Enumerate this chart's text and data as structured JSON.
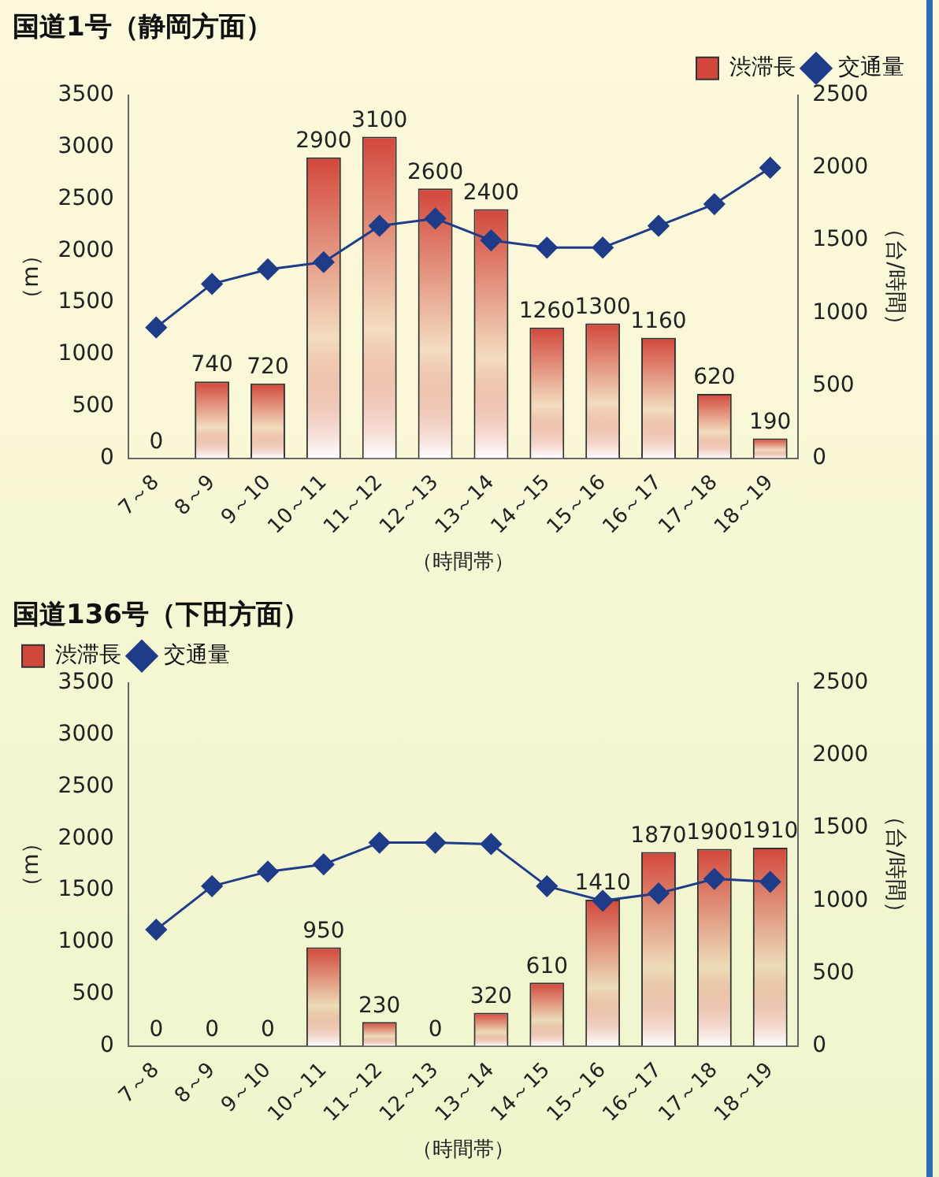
{
  "chart_data": [
    {
      "type": "bar",
      "title": "国道1号（静岡方面）",
      "xlabel": "（時間帯）",
      "ylabel": "（m）",
      "y2label": "（台/時間）",
      "categories": [
        "7～8",
        "8～9",
        "9～10",
        "10～11",
        "11～12",
        "12～13",
        "13～14",
        "14～15",
        "15～16",
        "16～17",
        "17～18",
        "18～19"
      ],
      "series": [
        {
          "name": "渋滞長",
          "color": "#d2473b",
          "values": [
            0,
            740,
            720,
            2900,
            3100,
            2600,
            2400,
            1260,
            1300,
            1160,
            620,
            190
          ],
          "value_labels": [
            "0",
            "740",
            "720",
            "2900",
            "3100",
            "2600",
            "2400",
            "1260",
            "1300",
            "1160",
            "620",
            "190"
          ]
        },
        {
          "name": "交通量",
          "type": "line",
          "axis": "y2",
          "color": "#1f3c88",
          "values": [
            900,
            1200,
            1300,
            1350,
            1600,
            1650,
            1500,
            1450,
            1450,
            1600,
            1750,
            2000
          ]
        }
      ],
      "ylim": [
        0,
        3500
      ],
      "yticks": [
        0,
        500,
        1000,
        1500,
        2000,
        2500,
        3000,
        3500
      ],
      "y2lim": [
        0,
        2500
      ],
      "y2ticks": [
        0,
        500,
        1000,
        1500,
        2000,
        2500
      ],
      "grid": false,
      "legend": "top right",
      "marker": "diamond"
    },
    {
      "type": "bar",
      "title": "国道136号（下田方面）",
      "xlabel": "（時間帯）",
      "ylabel": "（m）",
      "y2label": "（台/時間）",
      "categories": [
        "7～8",
        "8～9",
        "9～10",
        "10～11",
        "11～12",
        "12～13",
        "13～14",
        "14～15",
        "15～16",
        "16～17",
        "17～18",
        "18～19"
      ],
      "series": [
        {
          "name": "渋滞長",
          "color": "#d2473b",
          "values": [
            0,
            0,
            0,
            950,
            230,
            0,
            320,
            610,
            1410,
            1870,
            1900,
            1910
          ],
          "value_labels": [
            "0",
            "0",
            "0",
            "950",
            "230",
            "0",
            "320",
            "610",
            "1410",
            "1870",
            "1900",
            "1910"
          ]
        },
        {
          "name": "交通量",
          "type": "line",
          "axis": "y2",
          "color": "#1f3c88",
          "values": [
            800,
            1100,
            1200,
            1250,
            1400,
            1400,
            1390,
            1100,
            1000,
            1050,
            1150,
            1130
          ]
        }
      ],
      "ylim": [
        0,
        3500
      ],
      "yticks": [
        0,
        500,
        1000,
        1500,
        2000,
        2500,
        3000,
        3500
      ],
      "y2lim": [
        0,
        2500
      ],
      "y2ticks": [
        0,
        500,
        1000,
        1500,
        2000,
        2500
      ],
      "grid": false,
      "legend": "top left",
      "marker": "diamond"
    }
  ]
}
